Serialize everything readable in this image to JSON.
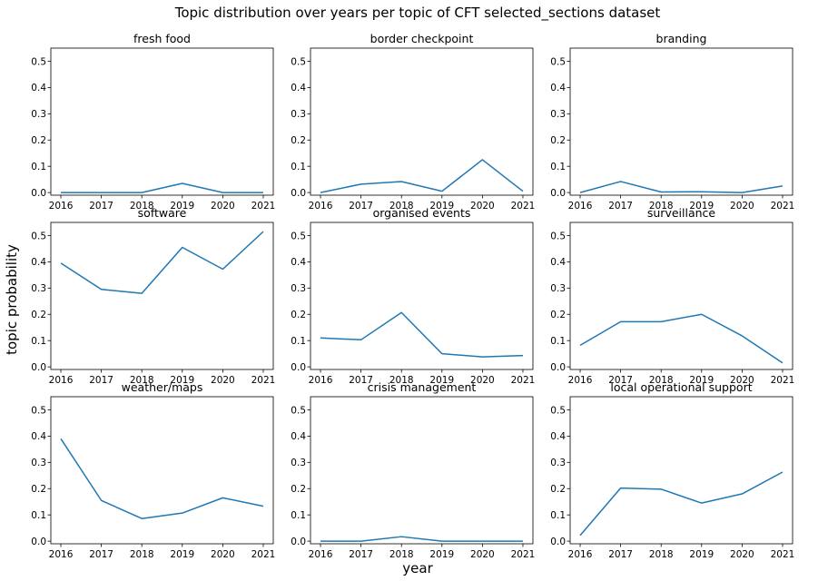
{
  "figure": {
    "title": "Topic distribution over years per topic of CFT selected_sections dataset",
    "xlabel": "year",
    "ylabel": "topic probability"
  },
  "chart_data": [
    {
      "type": "line",
      "title": "fresh food",
      "x": [
        "2016",
        "2017",
        "2018",
        "2019",
        "2020",
        "2021"
      ],
      "values": [
        0.0,
        0.0,
        0.0,
        0.035,
        0.0,
        0.0
      ],
      "ylim": [
        -0.01,
        0.55
      ],
      "yticks": [
        0.0,
        0.1,
        0.2,
        0.3,
        0.4,
        0.5
      ],
      "color": "#1f77b4"
    },
    {
      "type": "line",
      "title": "border checkpoint",
      "x": [
        "2016",
        "2017",
        "2018",
        "2019",
        "2020",
        "2021"
      ],
      "values": [
        0.0,
        0.032,
        0.042,
        0.005,
        0.125,
        0.005
      ],
      "ylim": [
        -0.01,
        0.55
      ],
      "yticks": [
        0.0,
        0.1,
        0.2,
        0.3,
        0.4,
        0.5
      ],
      "color": "#1f77b4"
    },
    {
      "type": "line",
      "title": "branding",
      "x": [
        "2016",
        "2017",
        "2018",
        "2019",
        "2020",
        "2021"
      ],
      "values": [
        0.0,
        0.042,
        0.002,
        0.003,
        0.0,
        0.025
      ],
      "ylim": [
        -0.01,
        0.55
      ],
      "yticks": [
        0.0,
        0.1,
        0.2,
        0.3,
        0.4,
        0.5
      ],
      "color": "#1f77b4"
    },
    {
      "type": "line",
      "title": "software",
      "x": [
        "2016",
        "2017",
        "2018",
        "2019",
        "2020",
        "2021"
      ],
      "values": [
        0.395,
        0.295,
        0.28,
        0.455,
        0.372,
        0.515
      ],
      "ylim": [
        -0.01,
        0.55
      ],
      "yticks": [
        0.0,
        0.1,
        0.2,
        0.3,
        0.4,
        0.5
      ],
      "color": "#1f77b4"
    },
    {
      "type": "line",
      "title": "organised events",
      "x": [
        "2016",
        "2017",
        "2018",
        "2019",
        "2020",
        "2021"
      ],
      "values": [
        0.11,
        0.103,
        0.207,
        0.05,
        0.038,
        0.043
      ],
      "ylim": [
        -0.01,
        0.55
      ],
      "yticks": [
        0.0,
        0.1,
        0.2,
        0.3,
        0.4,
        0.5
      ],
      "color": "#1f77b4"
    },
    {
      "type": "line",
      "title": "surveillance",
      "x": [
        "2016",
        "2017",
        "2018",
        "2019",
        "2020",
        "2021"
      ],
      "values": [
        0.082,
        0.172,
        0.172,
        0.2,
        0.118,
        0.015
      ],
      "ylim": [
        -0.01,
        0.55
      ],
      "yticks": [
        0.0,
        0.1,
        0.2,
        0.3,
        0.4,
        0.5
      ],
      "color": "#1f77b4"
    },
    {
      "type": "line",
      "title": "weather/maps",
      "x": [
        "2016",
        "2017",
        "2018",
        "2019",
        "2020",
        "2021"
      ],
      "values": [
        0.39,
        0.155,
        0.086,
        0.107,
        0.165,
        0.133
      ],
      "ylim": [
        -0.01,
        0.55
      ],
      "yticks": [
        0.0,
        0.1,
        0.2,
        0.3,
        0.4,
        0.5
      ],
      "color": "#1f77b4"
    },
    {
      "type": "line",
      "title": "crisis management",
      "x": [
        "2016",
        "2017",
        "2018",
        "2019",
        "2020",
        "2021"
      ],
      "values": [
        0.0,
        0.0,
        0.017,
        0.0,
        0.0,
        0.0
      ],
      "ylim": [
        -0.01,
        0.55
      ],
      "yticks": [
        0.0,
        0.1,
        0.2,
        0.3,
        0.4,
        0.5
      ],
      "color": "#1f77b4"
    },
    {
      "type": "line",
      "title": "local operational support",
      "x": [
        "2016",
        "2017",
        "2018",
        "2019",
        "2020",
        "2021"
      ],
      "values": [
        0.022,
        0.202,
        0.198,
        0.145,
        0.18,
        0.263
      ],
      "ylim": [
        -0.01,
        0.55
      ],
      "yticks": [
        0.0,
        0.1,
        0.2,
        0.3,
        0.4,
        0.5
      ],
      "color": "#1f77b4"
    }
  ]
}
